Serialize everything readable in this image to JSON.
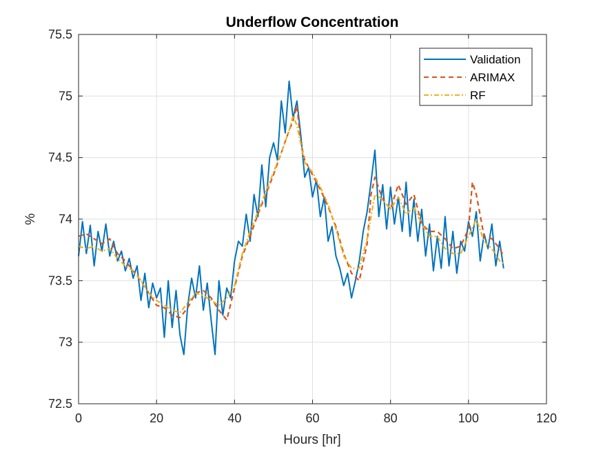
{
  "chart_data": {
    "type": "line",
    "title": "Underflow Concentration",
    "xlabel": "Hours [hr]",
    "ylabel": "%",
    "xlim": [
      0,
      120
    ],
    "ylim": [
      72.5,
      75.5
    ],
    "xticks": [
      0,
      20,
      40,
      60,
      80,
      100,
      120
    ],
    "yticks": [
      72.5,
      73,
      73.5,
      74,
      74.5,
      75,
      75.5
    ],
    "xtick_labels": [
      "0",
      "20",
      "40",
      "60",
      "80",
      "100",
      "120"
    ],
    "ytick_labels": [
      "72.5",
      "73",
      "73.5",
      "74",
      "74.5",
      "75",
      "75.5"
    ],
    "grid": true,
    "legend_position": "top-right",
    "series": [
      {
        "name": "Validation",
        "color": "#0072BD",
        "style": "solid",
        "x": [
          0,
          1,
          2,
          3,
          4,
          5,
          6,
          7,
          8,
          9,
          10,
          11,
          12,
          13,
          14,
          15,
          16,
          17,
          18,
          19,
          20,
          21,
          22,
          23,
          24,
          25,
          26,
          27,
          28,
          29,
          30,
          31,
          32,
          33,
          34,
          35,
          36,
          37,
          38,
          39,
          40,
          41,
          42,
          43,
          44,
          45,
          46,
          47,
          48,
          49,
          50,
          51,
          52,
          53,
          54,
          55,
          56,
          57,
          58,
          59,
          60,
          61,
          62,
          63,
          64,
          65,
          66,
          67,
          68,
          69,
          70,
          71,
          72,
          73,
          74,
          75,
          76,
          77,
          78,
          79,
          80,
          81,
          82,
          83,
          84,
          85,
          86,
          87,
          88,
          89,
          90,
          91,
          92,
          93,
          94,
          95,
          96,
          97,
          98,
          99,
          100,
          101,
          102,
          103,
          104,
          105,
          106,
          107,
          108,
          109
        ],
        "values": [
          73.7,
          73.98,
          73.72,
          73.95,
          73.62,
          73.9,
          73.74,
          73.96,
          73.7,
          73.82,
          73.66,
          73.74,
          73.58,
          73.68,
          73.52,
          73.62,
          73.34,
          73.56,
          73.28,
          73.48,
          73.36,
          73.44,
          73.04,
          73.5,
          73.12,
          73.42,
          73.06,
          72.9,
          73.3,
          73.52,
          73.36,
          73.62,
          73.26,
          73.48,
          73.18,
          72.9,
          73.5,
          73.22,
          73.44,
          73.36,
          73.66,
          73.82,
          73.78,
          74.04,
          73.82,
          74.2,
          74.02,
          74.44,
          74.1,
          74.5,
          74.62,
          74.48,
          74.96,
          74.7,
          75.12,
          74.82,
          74.96,
          74.68,
          74.34,
          74.42,
          74.18,
          74.32,
          74.02,
          74.18,
          73.82,
          73.94,
          73.7,
          73.6,
          73.46,
          73.56,
          73.36,
          73.5,
          73.66,
          73.9,
          74.06,
          74.3,
          74.56,
          74.02,
          74.28,
          73.92,
          74.26,
          73.96,
          74.18,
          73.9,
          74.3,
          73.86,
          74.16,
          73.82,
          74.08,
          73.7,
          73.96,
          73.58,
          73.86,
          73.6,
          74.02,
          73.62,
          73.9,
          73.56,
          73.82,
          73.74,
          73.98,
          73.86,
          74.06,
          73.66,
          73.88,
          73.76,
          73.96,
          73.62,
          73.82,
          73.6
        ]
      },
      {
        "name": "ARIMAX",
        "color": "#D95319",
        "style": "dashed",
        "x": [
          0,
          2,
          4,
          6,
          8,
          10,
          12,
          14,
          16,
          18,
          20,
          22,
          24,
          26,
          28,
          30,
          32,
          34,
          36,
          38,
          40,
          42,
          44,
          46,
          48,
          50,
          52,
          54,
          55,
          56,
          57,
          58,
          60,
          62,
          64,
          66,
          68,
          70,
          72,
          74,
          75,
          76,
          78,
          80,
          82,
          84,
          86,
          88,
          90,
          92,
          94,
          96,
          98,
          100,
          101,
          102,
          104,
          106,
          108,
          109
        ],
        "values": [
          73.86,
          73.88,
          73.84,
          73.8,
          73.84,
          73.72,
          73.66,
          73.58,
          73.5,
          73.4,
          73.3,
          73.28,
          73.22,
          73.2,
          73.28,
          73.4,
          73.42,
          73.36,
          73.26,
          73.18,
          73.44,
          73.7,
          73.86,
          74.04,
          74.2,
          74.36,
          74.54,
          74.72,
          74.8,
          74.92,
          74.62,
          74.48,
          74.36,
          74.24,
          74.1,
          73.94,
          73.72,
          73.56,
          73.5,
          73.8,
          74.2,
          74.34,
          74.16,
          74.08,
          74.28,
          74.12,
          74.2,
          73.96,
          73.9,
          73.9,
          73.84,
          73.76,
          73.78,
          73.92,
          74.3,
          74.2,
          73.86,
          73.84,
          73.76,
          73.7
        ]
      },
      {
        "name": "RF",
        "color": "#EDB120",
        "style": "dashdot",
        "x": [
          0,
          2,
          4,
          6,
          8,
          10,
          12,
          14,
          16,
          18,
          20,
          22,
          24,
          26,
          28,
          30,
          32,
          34,
          36,
          38,
          40,
          42,
          44,
          46,
          48,
          50,
          52,
          54,
          55,
          56,
          58,
          60,
          62,
          64,
          66,
          68,
          70,
          72,
          74,
          76,
          78,
          80,
          82,
          84,
          86,
          88,
          90,
          92,
          94,
          96,
          98,
          100,
          102,
          104,
          106,
          108,
          109
        ],
        "values": [
          73.78,
          73.76,
          73.78,
          73.74,
          73.76,
          73.68,
          73.62,
          73.58,
          73.5,
          73.4,
          73.34,
          73.3,
          73.26,
          73.24,
          73.32,
          73.4,
          73.38,
          73.34,
          73.3,
          73.36,
          73.46,
          73.72,
          73.9,
          74.06,
          74.22,
          74.38,
          74.54,
          74.72,
          74.84,
          74.76,
          74.46,
          74.38,
          74.26,
          74.12,
          73.92,
          73.7,
          73.6,
          73.6,
          73.84,
          74.2,
          74.16,
          74.08,
          74.18,
          74.04,
          74.1,
          73.96,
          73.86,
          73.86,
          73.76,
          73.72,
          73.72,
          73.86,
          74.0,
          73.82,
          73.76,
          73.66,
          73.64
        ]
      }
    ]
  }
}
